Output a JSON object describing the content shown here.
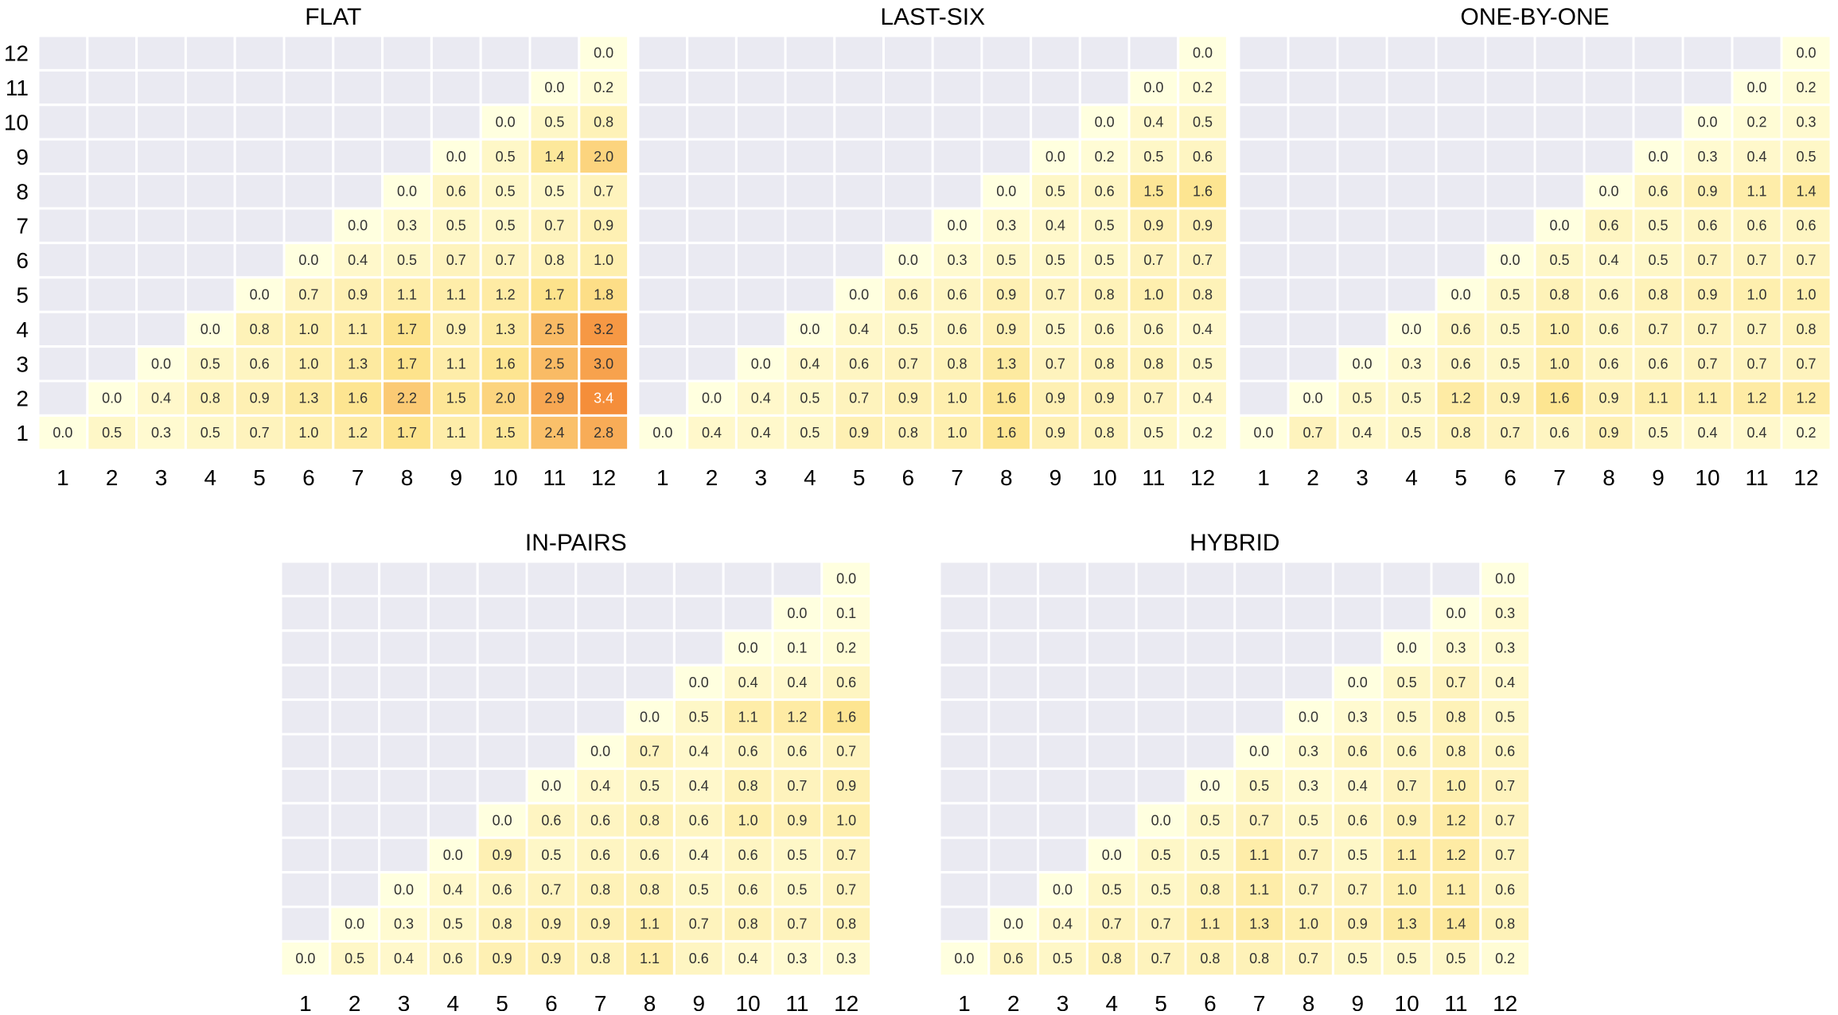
{
  "chart_data": [
    {
      "type": "heatmap",
      "title": "FLAT",
      "x_tick_labels": [
        "1",
        "2",
        "3",
        "4",
        "5",
        "6",
        "7",
        "8",
        "9",
        "10",
        "11",
        "12"
      ],
      "y_tick_labels": [
        "1",
        "2",
        "3",
        "4",
        "5",
        "6",
        "7",
        "8",
        "9",
        "10",
        "11",
        "12"
      ],
      "rows_top_to_bottom": [
        [
          "",
          "",
          "",
          "",
          "",
          "",
          "",
          "",
          "",
          "",
          "",
          "0.0"
        ],
        [
          "",
          "",
          "",
          "",
          "",
          "",
          "",
          "",
          "",
          "",
          "0.0",
          "0.2"
        ],
        [
          "",
          "",
          "",
          "",
          "",
          "",
          "",
          "",
          "",
          "0.0",
          "0.5",
          "0.8"
        ],
        [
          "",
          "",
          "",
          "",
          "",
          "",
          "",
          "",
          "0.0",
          "0.5",
          "1.4",
          "2.0"
        ],
        [
          "",
          "",
          "",
          "",
          "",
          "",
          "",
          "0.0",
          "0.6",
          "0.5",
          "0.5",
          "0.7"
        ],
        [
          "",
          "",
          "",
          "",
          "",
          "",
          "0.0",
          "0.3",
          "0.5",
          "0.5",
          "0.7",
          "0.9"
        ],
        [
          "",
          "",
          "",
          "",
          "",
          "0.0",
          "0.4",
          "0.5",
          "0.7",
          "0.7",
          "0.8",
          "1.0"
        ],
        [
          "",
          "",
          "",
          "",
          "0.0",
          "0.7",
          "0.9",
          "1.1",
          "1.1",
          "1.2",
          "1.7",
          "1.8"
        ],
        [
          "",
          "",
          "",
          "0.0",
          "0.8",
          "1.0",
          "1.1",
          "1.7",
          "0.9",
          "1.3",
          "2.5",
          "3.2"
        ],
        [
          "",
          "",
          "0.0",
          "0.5",
          "0.6",
          "1.0",
          "1.3",
          "1.7",
          "1.1",
          "1.6",
          "2.5",
          "3.0"
        ],
        [
          "",
          "0.0",
          "0.4",
          "0.8",
          "0.9",
          "1.3",
          "1.6",
          "2.2",
          "1.5",
          "2.0",
          "2.9",
          "3.4"
        ],
        [
          "0.0",
          "0.5",
          "0.3",
          "0.5",
          "0.7",
          "1.0",
          "1.2",
          "1.7",
          "1.1",
          "1.5",
          "2.4",
          "2.8"
        ]
      ]
    },
    {
      "type": "heatmap",
      "title": "LAST-SIX",
      "x_tick_labels": [
        "1",
        "2",
        "3",
        "4",
        "5",
        "6",
        "7",
        "8",
        "9",
        "10",
        "11",
        "12"
      ],
      "y_tick_labels": [],
      "rows_top_to_bottom": [
        [
          "",
          "",
          "",
          "",
          "",
          "",
          "",
          "",
          "",
          "",
          "",
          "0.0"
        ],
        [
          "",
          "",
          "",
          "",
          "",
          "",
          "",
          "",
          "",
          "",
          "0.0",
          "0.2"
        ],
        [
          "",
          "",
          "",
          "",
          "",
          "",
          "",
          "",
          "",
          "0.0",
          "0.4",
          "0.5"
        ],
        [
          "",
          "",
          "",
          "",
          "",
          "",
          "",
          "",
          "0.0",
          "0.2",
          "0.5",
          "0.6"
        ],
        [
          "",
          "",
          "",
          "",
          "",
          "",
          "",
          "0.0",
          "0.5",
          "0.6",
          "1.5",
          "1.6"
        ],
        [
          "",
          "",
          "",
          "",
          "",
          "",
          "0.0",
          "0.3",
          "0.4",
          "0.5",
          "0.9",
          "0.9"
        ],
        [
          "",
          "",
          "",
          "",
          "",
          "0.0",
          "0.3",
          "0.5",
          "0.5",
          "0.5",
          "0.7",
          "0.7"
        ],
        [
          "",
          "",
          "",
          "",
          "0.0",
          "0.6",
          "0.6",
          "0.9",
          "0.7",
          "0.8",
          "1.0",
          "0.8"
        ],
        [
          "",
          "",
          "",
          "0.0",
          "0.4",
          "0.5",
          "0.6",
          "0.9",
          "0.5",
          "0.6",
          "0.6",
          "0.4"
        ],
        [
          "",
          "",
          "0.0",
          "0.4",
          "0.6",
          "0.7",
          "0.8",
          "1.3",
          "0.7",
          "0.8",
          "0.8",
          "0.5"
        ],
        [
          "",
          "0.0",
          "0.4",
          "0.5",
          "0.7",
          "0.9",
          "1.0",
          "1.6",
          "0.9",
          "0.9",
          "0.7",
          "0.4"
        ],
        [
          "0.0",
          "0.4",
          "0.4",
          "0.5",
          "0.9",
          "0.8",
          "1.0",
          "1.6",
          "0.9",
          "0.8",
          "0.5",
          "0.2"
        ]
      ]
    },
    {
      "type": "heatmap",
      "title": "ONE-BY-ONE",
      "x_tick_labels": [
        "1",
        "2",
        "3",
        "4",
        "5",
        "6",
        "7",
        "8",
        "9",
        "10",
        "11",
        "12"
      ],
      "y_tick_labels": [],
      "rows_top_to_bottom": [
        [
          "",
          "",
          "",
          "",
          "",
          "",
          "",
          "",
          "",
          "",
          "",
          "0.0"
        ],
        [
          "",
          "",
          "",
          "",
          "",
          "",
          "",
          "",
          "",
          "",
          "0.0",
          "0.2"
        ],
        [
          "",
          "",
          "",
          "",
          "",
          "",
          "",
          "",
          "",
          "0.0",
          "0.2",
          "0.3"
        ],
        [
          "",
          "",
          "",
          "",
          "",
          "",
          "",
          "",
          "0.0",
          "0.3",
          "0.4",
          "0.5"
        ],
        [
          "",
          "",
          "",
          "",
          "",
          "",
          "",
          "0.0",
          "0.6",
          "0.9",
          "1.1",
          "1.4"
        ],
        [
          "",
          "",
          "",
          "",
          "",
          "",
          "0.0",
          "0.6",
          "0.5",
          "0.6",
          "0.6",
          "0.6"
        ],
        [
          "",
          "",
          "",
          "",
          "",
          "0.0",
          "0.5",
          "0.4",
          "0.5",
          "0.7",
          "0.7",
          "0.7"
        ],
        [
          "",
          "",
          "",
          "",
          "0.0",
          "0.5",
          "0.8",
          "0.6",
          "0.8",
          "0.9",
          "1.0",
          "1.0"
        ],
        [
          "",
          "",
          "",
          "0.0",
          "0.6",
          "0.5",
          "1.0",
          "0.6",
          "0.7",
          "0.7",
          "0.7",
          "0.8"
        ],
        [
          "",
          "",
          "0.0",
          "0.3",
          "0.6",
          "0.5",
          "1.0",
          "0.6",
          "0.6",
          "0.7",
          "0.7",
          "0.7"
        ],
        [
          "",
          "0.0",
          "0.5",
          "0.5",
          "1.2",
          "0.9",
          "1.6",
          "0.9",
          "1.1",
          "1.1",
          "1.2",
          "1.2"
        ],
        [
          "0.0",
          "0.7",
          "0.4",
          "0.5",
          "0.8",
          "0.7",
          "0.6",
          "0.9",
          "0.5",
          "0.4",
          "0.4",
          "0.2"
        ]
      ]
    },
    {
      "type": "heatmap",
      "title": "IN-PAIRS",
      "x_tick_labels": [
        "1",
        "2",
        "3",
        "4",
        "5",
        "6",
        "7",
        "8",
        "9",
        "10",
        "11",
        "12"
      ],
      "y_tick_labels": [],
      "rows_top_to_bottom": [
        [
          "",
          "",
          "",
          "",
          "",
          "",
          "",
          "",
          "",
          "",
          "",
          "0.0"
        ],
        [
          "",
          "",
          "",
          "",
          "",
          "",
          "",
          "",
          "",
          "",
          "0.0",
          "0.1"
        ],
        [
          "",
          "",
          "",
          "",
          "",
          "",
          "",
          "",
          "",
          "0.0",
          "0.1",
          "0.2"
        ],
        [
          "",
          "",
          "",
          "",
          "",
          "",
          "",
          "",
          "0.0",
          "0.4",
          "0.4",
          "0.6"
        ],
        [
          "",
          "",
          "",
          "",
          "",
          "",
          "",
          "0.0",
          "0.5",
          "1.1",
          "1.2",
          "1.6"
        ],
        [
          "",
          "",
          "",
          "",
          "",
          "",
          "0.0",
          "0.7",
          "0.4",
          "0.6",
          "0.6",
          "0.7"
        ],
        [
          "",
          "",
          "",
          "",
          "",
          "0.0",
          "0.4",
          "0.5",
          "0.4",
          "0.8",
          "0.7",
          "0.9"
        ],
        [
          "",
          "",
          "",
          "",
          "0.0",
          "0.6",
          "0.6",
          "0.8",
          "0.6",
          "1.0",
          "0.9",
          "1.0"
        ],
        [
          "",
          "",
          "",
          "0.0",
          "0.9",
          "0.5",
          "0.6",
          "0.6",
          "0.4",
          "0.6",
          "0.5",
          "0.7"
        ],
        [
          "",
          "",
          "0.0",
          "0.4",
          "0.6",
          "0.7",
          "0.8",
          "0.8",
          "0.5",
          "0.6",
          "0.5",
          "0.7"
        ],
        [
          "",
          "0.0",
          "0.3",
          "0.5",
          "0.8",
          "0.9",
          "0.9",
          "1.1",
          "0.7",
          "0.8",
          "0.7",
          "0.8"
        ],
        [
          "0.0",
          "0.5",
          "0.4",
          "0.6",
          "0.9",
          "0.9",
          "0.8",
          "1.1",
          "0.6",
          "0.4",
          "0.3",
          "0.3"
        ]
      ]
    },
    {
      "type": "heatmap",
      "title": "HYBRID",
      "x_tick_labels": [
        "1",
        "2",
        "3",
        "4",
        "5",
        "6",
        "7",
        "8",
        "9",
        "10",
        "11",
        "12"
      ],
      "y_tick_labels": [],
      "rows_top_to_bottom": [
        [
          "",
          "",
          "",
          "",
          "",
          "",
          "",
          "",
          "",
          "",
          "",
          "0.0"
        ],
        [
          "",
          "",
          "",
          "",
          "",
          "",
          "",
          "",
          "",
          "",
          "0.0",
          "0.3"
        ],
        [
          "",
          "",
          "",
          "",
          "",
          "",
          "",
          "",
          "",
          "0.0",
          "0.3",
          "0.3"
        ],
        [
          "",
          "",
          "",
          "",
          "",
          "",
          "",
          "",
          "0.0",
          "0.5",
          "0.7",
          "0.4"
        ],
        [
          "",
          "",
          "",
          "",
          "",
          "",
          "",
          "0.0",
          "0.3",
          "0.5",
          "0.8",
          "0.5"
        ],
        [
          "",
          "",
          "",
          "",
          "",
          "",
          "0.0",
          "0.3",
          "0.6",
          "0.6",
          "0.8",
          "0.6"
        ],
        [
          "",
          "",
          "",
          "",
          "",
          "0.0",
          "0.5",
          "0.3",
          "0.4",
          "0.7",
          "1.0",
          "0.7"
        ],
        [
          "",
          "",
          "",
          "",
          "0.0",
          "0.5",
          "0.7",
          "0.5",
          "0.6",
          "0.9",
          "1.2",
          "0.7"
        ],
        [
          "",
          "",
          "",
          "0.0",
          "0.5",
          "0.5",
          "1.1",
          "0.7",
          "0.5",
          "1.1",
          "1.2",
          "0.7"
        ],
        [
          "",
          "",
          "0.0",
          "0.5",
          "0.5",
          "0.8",
          "1.1",
          "0.7",
          "0.7",
          "1.0",
          "1.1",
          "0.6"
        ],
        [
          "",
          "0.0",
          "0.4",
          "0.7",
          "0.7",
          "1.1",
          "1.3",
          "1.0",
          "0.9",
          "1.3",
          "1.4",
          "0.8"
        ],
        [
          "0.0",
          "0.6",
          "0.5",
          "0.8",
          "0.7",
          "0.8",
          "0.8",
          "0.7",
          "0.5",
          "0.5",
          "0.5",
          "0.2"
        ]
      ]
    }
  ],
  "colors": {
    "empty_cell": "#eaeaf2",
    "cell_border": "#ffffff",
    "scale_low": "#ffffdf",
    "scale_mid": "#fde38c",
    "scale_high": "#f58e3a",
    "scale_max_value": 3.4,
    "text_dark": "#333333",
    "text_light": "#ffffff",
    "axis_text": "#000000"
  }
}
